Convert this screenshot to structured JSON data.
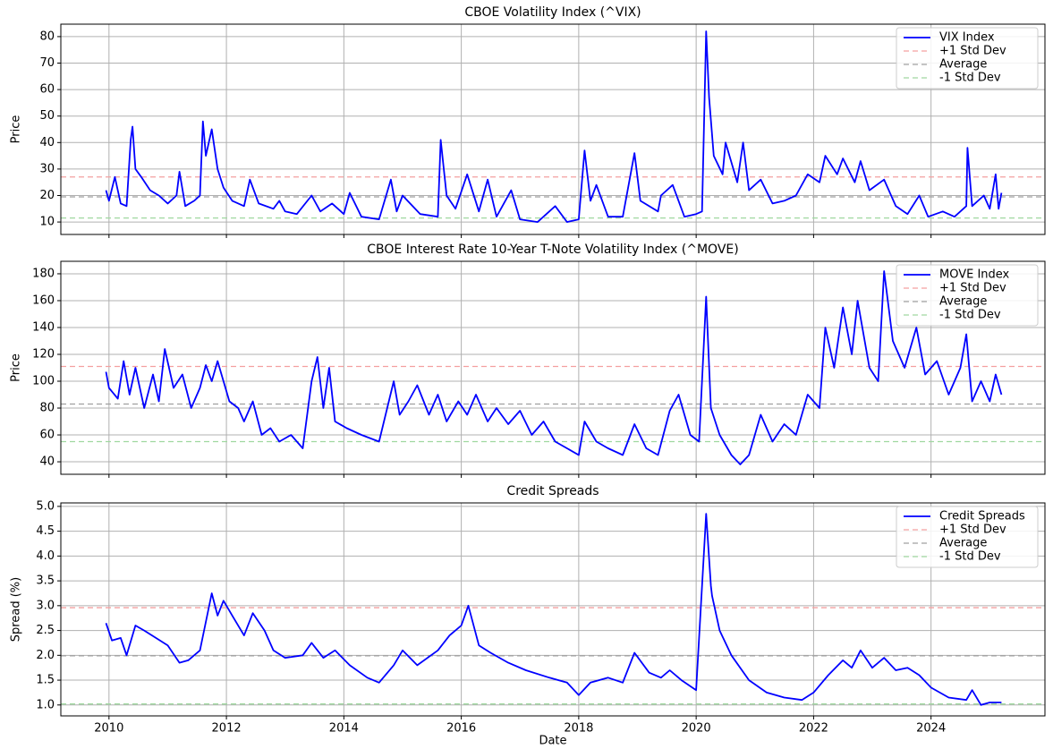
{
  "chart_data": [
    {
      "type": "line",
      "title": "CBOE Volatility Index (^VIX)",
      "ylabel": "Price",
      "x": [
        2009.95,
        2010.0,
        2010.1,
        2010.2,
        2010.3,
        2010.37,
        2010.4,
        2010.45,
        2010.55,
        2010.7,
        2010.85,
        2011.0,
        2011.15,
        2011.2,
        2011.3,
        2011.45,
        2011.55,
        2011.6,
        2011.65,
        2011.75,
        2011.85,
        2011.95,
        2012.1,
        2012.3,
        2012.4,
        2012.55,
        2012.8,
        2012.9,
        2013.0,
        2013.2,
        2013.45,
        2013.6,
        2013.8,
        2014.0,
        2014.1,
        2014.3,
        2014.6,
        2014.8,
        2014.9,
        2015.0,
        2015.3,
        2015.6,
        2015.65,
        2015.75,
        2015.9,
        2016.1,
        2016.3,
        2016.45,
        2016.6,
        2016.85,
        2017.0,
        2017.3,
        2017.6,
        2017.8,
        2018.0,
        2018.1,
        2018.2,
        2018.3,
        2018.5,
        2018.75,
        2018.95,
        2019.05,
        2019.35,
        2019.4,
        2019.6,
        2019.8,
        2020.0,
        2020.1,
        2020.17,
        2020.22,
        2020.3,
        2020.45,
        2020.5,
        2020.7,
        2020.8,
        2020.9,
        2021.1,
        2021.3,
        2021.5,
        2021.7,
        2021.9,
        2022.1,
        2022.2,
        2022.4,
        2022.5,
        2022.7,
        2022.8,
        2022.95,
        2023.2,
        2023.4,
        2023.6,
        2023.8,
        2023.95,
        2024.2,
        2024.4,
        2024.6,
        2024.62,
        2024.7,
        2024.9,
        2025.0,
        2025.1,
        2025.15,
        2025.2
      ],
      "series": [
        {
          "name": "VIX Index",
          "color": "#0000ff",
          "values": [
            22,
            18,
            27,
            17,
            16,
            41,
            46,
            30,
            27,
            22,
            20,
            17,
            20,
            29,
            16,
            18,
            20,
            48,
            35,
            45,
            30,
            23,
            18,
            16,
            26,
            17,
            15,
            18,
            14,
            13,
            20,
            14,
            17,
            13,
            21,
            12,
            11,
            26,
            14,
            20,
            13,
            12,
            41,
            20,
            15,
            28,
            14,
            26,
            12,
            22,
            11,
            10,
            16,
            10,
            11,
            37,
            18,
            24,
            12,
            12,
            36,
            18,
            14,
            20,
            24,
            12,
            13,
            14,
            82,
            57,
            35,
            28,
            40,
            25,
            40,
            22,
            26,
            17,
            18,
            20,
            28,
            25,
            35,
            28,
            34,
            25,
            33,
            22,
            26,
            16,
            13,
            20,
            12,
            14,
            12,
            16,
            38,
            16,
            20,
            15,
            28,
            15,
            21
          ]
        }
      ],
      "hlines": [
        {
          "name": "+1 Std Dev",
          "color": "#f4a0a0",
          "value": 27
        },
        {
          "name": "Average",
          "color": "#a0a0a0",
          "value": 19.5
        },
        {
          "name": "-1 Std Dev",
          "color": "#a0d8a0",
          "value": 11.5
        }
      ],
      "xlim": [
        2009.18,
        2025.94
      ],
      "xticks": [
        2010,
        2012,
        2014,
        2016,
        2018,
        2020,
        2022,
        2024
      ],
      "ylim": [
        5.3,
        84.7
      ],
      "yticks": [
        10,
        20,
        30,
        40,
        50,
        60,
        70,
        80
      ],
      "grid": true,
      "legend": "upper right"
    },
    {
      "type": "line",
      "title": "CBOE Interest Rate 10-Year T-Note Volatility Index (^MOVE)",
      "ylabel": "Price",
      "x": [
        2009.95,
        2010.0,
        2010.15,
        2010.25,
        2010.35,
        2010.45,
        2010.6,
        2010.75,
        2010.85,
        2010.95,
        2011.1,
        2011.25,
        2011.4,
        2011.55,
        2011.65,
        2011.75,
        2011.85,
        2011.95,
        2012.05,
        2012.2,
        2012.3,
        2012.45,
        2012.6,
        2012.75,
        2012.9,
        2013.1,
        2013.3,
        2013.45,
        2013.55,
        2013.65,
        2013.75,
        2013.85,
        2014.05,
        2014.3,
        2014.6,
        2014.85,
        2014.95,
        2015.1,
        2015.25,
        2015.45,
        2015.6,
        2015.75,
        2015.95,
        2016.1,
        2016.25,
        2016.45,
        2016.6,
        2016.8,
        2017.0,
        2017.2,
        2017.4,
        2017.6,
        2017.8,
        2018.0,
        2018.1,
        2018.3,
        2018.5,
        2018.75,
        2018.95,
        2019.15,
        2019.35,
        2019.55,
        2019.7,
        2019.9,
        2020.05,
        2020.17,
        2020.25,
        2020.4,
        2020.6,
        2020.75,
        2020.9,
        2021.1,
        2021.3,
        2021.5,
        2021.7,
        2021.9,
        2022.1,
        2022.2,
        2022.35,
        2022.5,
        2022.65,
        2022.75,
        2022.95,
        2023.1,
        2023.2,
        2023.35,
        2023.55,
        2023.75,
        2023.9,
        2024.1,
        2024.3,
        2024.5,
        2024.6,
        2024.7,
        2024.85,
        2025.0,
        2025.1,
        2025.2
      ],
      "series": [
        {
          "name": "MOVE Index",
          "color": "#0000ff",
          "values": [
            107,
            95,
            87,
            115,
            90,
            110,
            80,
            105,
            85,
            124,
            95,
            105,
            80,
            95,
            112,
            100,
            115,
            100,
            85,
            80,
            70,
            85,
            60,
            65,
            55,
            60,
            50,
            100,
            118,
            80,
            110,
            70,
            65,
            60,
            55,
            100,
            75,
            85,
            97,
            75,
            90,
            70,
            85,
            75,
            90,
            70,
            80,
            68,
            78,
            60,
            70,
            55,
            50,
            45,
            70,
            55,
            50,
            45,
            68,
            50,
            45,
            78,
            90,
            60,
            55,
            163,
            80,
            60,
            45,
            38,
            45,
            75,
            55,
            68,
            60,
            90,
            80,
            140,
            110,
            155,
            120,
            160,
            110,
            100,
            182,
            130,
            110,
            140,
            105,
            115,
            90,
            110,
            135,
            85,
            100,
            85,
            105,
            90
          ]
        }
      ],
      "hlines": [
        {
          "name": "+1 Std Dev",
          "color": "#f4a0a0",
          "value": 111
        },
        {
          "name": "Average",
          "color": "#a0a0a0",
          "value": 83
        },
        {
          "name": "-1 Std Dev",
          "color": "#a0d8a0",
          "value": 55
        }
      ],
      "xlim": [
        2009.18,
        2025.94
      ],
      "xticks": [
        2010,
        2012,
        2014,
        2016,
        2018,
        2020,
        2022,
        2024
      ],
      "ylim": [
        30.7,
        189.3
      ],
      "yticks": [
        40,
        60,
        80,
        100,
        120,
        140,
        160,
        180
      ],
      "grid": true,
      "legend": "upper right"
    },
    {
      "type": "line",
      "title": "Credit Spreads",
      "ylabel": "Spread (%)",
      "xlabel": "Date",
      "x": [
        2009.95,
        2010.05,
        2010.2,
        2010.3,
        2010.45,
        2010.6,
        2010.8,
        2011.0,
        2011.2,
        2011.35,
        2011.55,
        2011.75,
        2011.85,
        2011.95,
        2012.1,
        2012.3,
        2012.45,
        2012.65,
        2012.8,
        2013.0,
        2013.3,
        2013.45,
        2013.65,
        2013.85,
        2014.1,
        2014.4,
        2014.6,
        2014.85,
        2015.0,
        2015.25,
        2015.6,
        2015.8,
        2016.0,
        2016.12,
        2016.3,
        2016.5,
        2016.8,
        2017.1,
        2017.5,
        2017.8,
        2018.0,
        2018.2,
        2018.5,
        2018.75,
        2018.95,
        2019.2,
        2019.4,
        2019.55,
        2019.75,
        2020.0,
        2020.17,
        2020.25,
        2020.27,
        2020.4,
        2020.6,
        2020.9,
        2021.2,
        2021.5,
        2021.8,
        2022.0,
        2022.25,
        2022.5,
        2022.65,
        2022.8,
        2023.0,
        2023.2,
        2023.4,
        2023.6,
        2023.8,
        2024.0,
        2024.3,
        2024.6,
        2024.7,
        2024.85,
        2025.0,
        2025.2
      ],
      "series": [
        {
          "name": "Credit Spreads",
          "color": "#0000ff",
          "values": [
            2.65,
            2.3,
            2.35,
            2.0,
            2.6,
            2.5,
            2.35,
            2.2,
            1.85,
            1.9,
            2.1,
            3.25,
            2.8,
            3.1,
            2.8,
            2.4,
            2.85,
            2.5,
            2.1,
            1.95,
            2.0,
            2.25,
            1.95,
            2.1,
            1.8,
            1.55,
            1.45,
            1.8,
            2.1,
            1.8,
            2.1,
            2.4,
            2.6,
            3.0,
            2.2,
            2.05,
            1.85,
            1.7,
            1.55,
            1.45,
            1.2,
            1.45,
            1.55,
            1.45,
            2.05,
            1.65,
            1.55,
            1.7,
            1.5,
            1.3,
            4.85,
            3.4,
            3.2,
            2.5,
            2.0,
            1.5,
            1.25,
            1.15,
            1.1,
            1.25,
            1.6,
            1.9,
            1.75,
            2.1,
            1.75,
            1.95,
            1.7,
            1.75,
            1.6,
            1.35,
            1.15,
            1.1,
            1.3,
            1.0,
            1.05,
            1.05
          ]
        }
      ],
      "hlines": [
        {
          "name": "+1 Std Dev",
          "color": "#f4a0a0",
          "value": 2.96
        },
        {
          "name": "Average",
          "color": "#a0a0a0",
          "value": 1.99
        },
        {
          "name": "-1 Std Dev",
          "color": "#a0d8a0",
          "value": 1.02
        }
      ],
      "xlim": [
        2009.18,
        2025.94
      ],
      "xticks": [
        2010,
        2012,
        2014,
        2016,
        2018,
        2020,
        2022,
        2024
      ],
      "ylim": [
        0.78,
        5.07
      ],
      "yticks": [
        {
          "value": 1,
          "label": "1.0"
        },
        1.5,
        {
          "value": 2,
          "label": "2.0"
        },
        2.5,
        {
          "value": 3,
          "label": "3.0"
        },
        3.5,
        {
          "value": 4,
          "label": "4.0"
        },
        4.5,
        {
          "value": 5,
          "label": "5.0"
        }
      ],
      "grid": true,
      "legend": "upper right"
    }
  ]
}
